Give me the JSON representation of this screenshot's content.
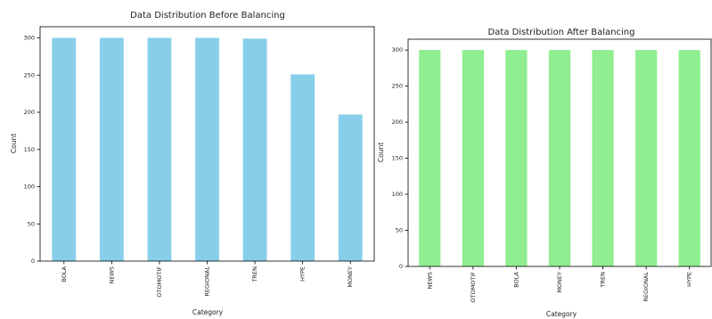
{
  "chart_data": [
    {
      "type": "bar",
      "title": "Data Distribution Before Balancing",
      "xlabel": "Category",
      "ylabel": "Count",
      "categories": [
        "BOLA",
        "NEWS",
        "OTOMOTIF",
        "REGIONAL",
        "TREN",
        "HYPE",
        "MONEY"
      ],
      "values": [
        300,
        300,
        300,
        300,
        299,
        251,
        197
      ],
      "ylim": [
        0,
        315
      ],
      "yticks": [
        0,
        50,
        100,
        150,
        200,
        250,
        300
      ],
      "grid": false,
      "legend": false,
      "color": "#87ceeb"
    },
    {
      "type": "bar",
      "title": "Data Distribution After Balancing",
      "xlabel": "Category",
      "ylabel": "Count",
      "categories": [
        "NEWS",
        "OTOMOTIF",
        "BOLA",
        "MONEY",
        "TREN",
        "REGIONAL",
        "HYPE"
      ],
      "values": [
        300,
        300,
        300,
        300,
        300,
        300,
        300
      ],
      "ylim": [
        0,
        315
      ],
      "yticks": [
        0,
        50,
        100,
        150,
        200,
        250,
        300
      ],
      "grid": false,
      "legend": false,
      "color": "#90ee90"
    }
  ]
}
